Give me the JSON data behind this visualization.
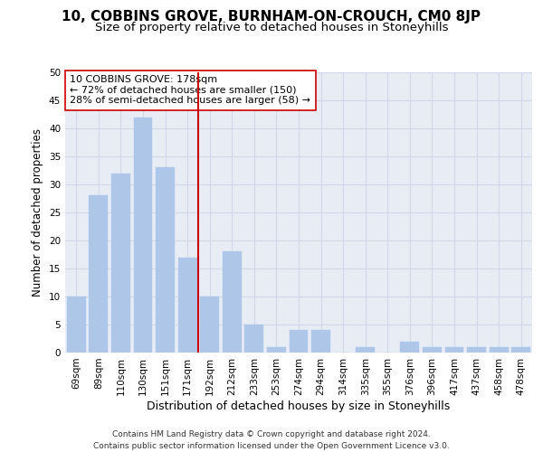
{
  "title": "10, COBBINS GROVE, BURNHAM-ON-CROUCH, CM0 8JP",
  "subtitle": "Size of property relative to detached houses in Stoneyhills",
  "xlabel": "Distribution of detached houses by size in Stoneyhills",
  "ylabel": "Number of detached properties",
  "categories": [
    "69sqm",
    "89sqm",
    "110sqm",
    "130sqm",
    "151sqm",
    "171sqm",
    "192sqm",
    "212sqm",
    "233sqm",
    "253sqm",
    "274sqm",
    "294sqm",
    "314sqm",
    "335sqm",
    "355sqm",
    "376sqm",
    "396sqm",
    "417sqm",
    "437sqm",
    "458sqm",
    "478sqm"
  ],
  "values": [
    10,
    28,
    32,
    42,
    33,
    17,
    10,
    18,
    5,
    1,
    4,
    4,
    0,
    1,
    0,
    2,
    1,
    1,
    1,
    1,
    1
  ],
  "bar_color": "#aec6e8",
  "bar_edgecolor": "#aec6e8",
  "vline_x": 5.5,
  "vline_color": "#cc0000",
  "annotation_text": "10 COBBINS GROVE: 178sqm\n← 72% of detached houses are smaller (150)\n28% of semi-detached houses are larger (58) →",
  "annotation_box_color": "#ffffff",
  "annotation_box_edgecolor": "#cc0000",
  "ylim": [
    0,
    50
  ],
  "yticks": [
    0,
    5,
    10,
    15,
    20,
    25,
    30,
    35,
    40,
    45,
    50
  ],
  "grid_color": "#d0d8e8",
  "bg_color": "#e8edf5",
  "footer": "Contains HM Land Registry data © Crown copyright and database right 2024.\nContains public sector information licensed under the Open Government Licence v3.0.",
  "title_fontsize": 11,
  "subtitle_fontsize": 9.5,
  "xlabel_fontsize": 9,
  "ylabel_fontsize": 8.5,
  "tick_fontsize": 7.5,
  "annotation_fontsize": 8,
  "footer_fontsize": 6.5
}
